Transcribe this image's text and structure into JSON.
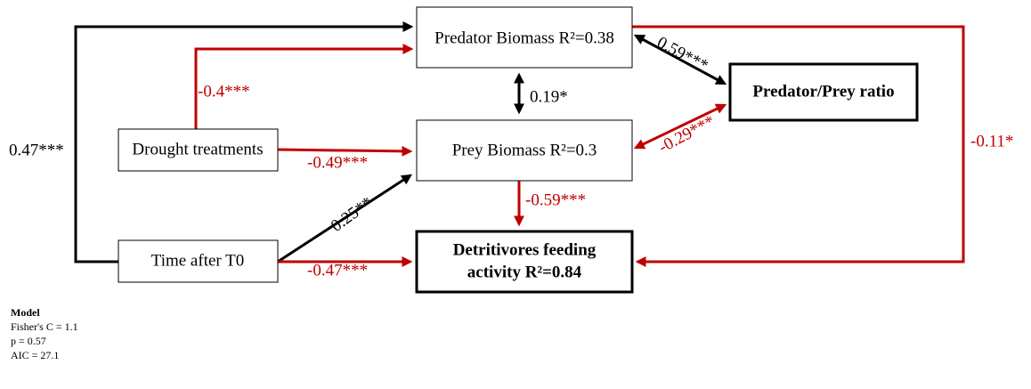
{
  "nodes": [
    {
      "lines": [
        "Predator Biomass R²=0.38"
      ]
    },
    {
      "lines": [
        "Predator/Prey ratio"
      ]
    },
    {
      "lines": [
        "Drought treatments"
      ]
    },
    {
      "lines": [
        "Prey Biomass R²=0.3"
      ]
    },
    {
      "lines": [
        "Time after T0"
      ]
    },
    {
      "lines": [
        "Detritivores feeding",
        "activity R²=0.84"
      ]
    }
  ],
  "edges": [
    {
      "label": "0.47***"
    },
    {
      "label": "-0.4***"
    },
    {
      "label": "0.19*"
    },
    {
      "label": "0.59***"
    },
    {
      "label": "-0.29***"
    },
    {
      "label": "-0.49***"
    },
    {
      "label": "0.25**"
    },
    {
      "label": "-0.59***"
    },
    {
      "label": "-0.47***"
    },
    {
      "label": "-0.11*"
    }
  ],
  "model": {
    "title": "Model",
    "lines": [
      "Fisher's C = 1.1",
      "p = 0.57",
      "AIC = 27.1"
    ]
  }
}
